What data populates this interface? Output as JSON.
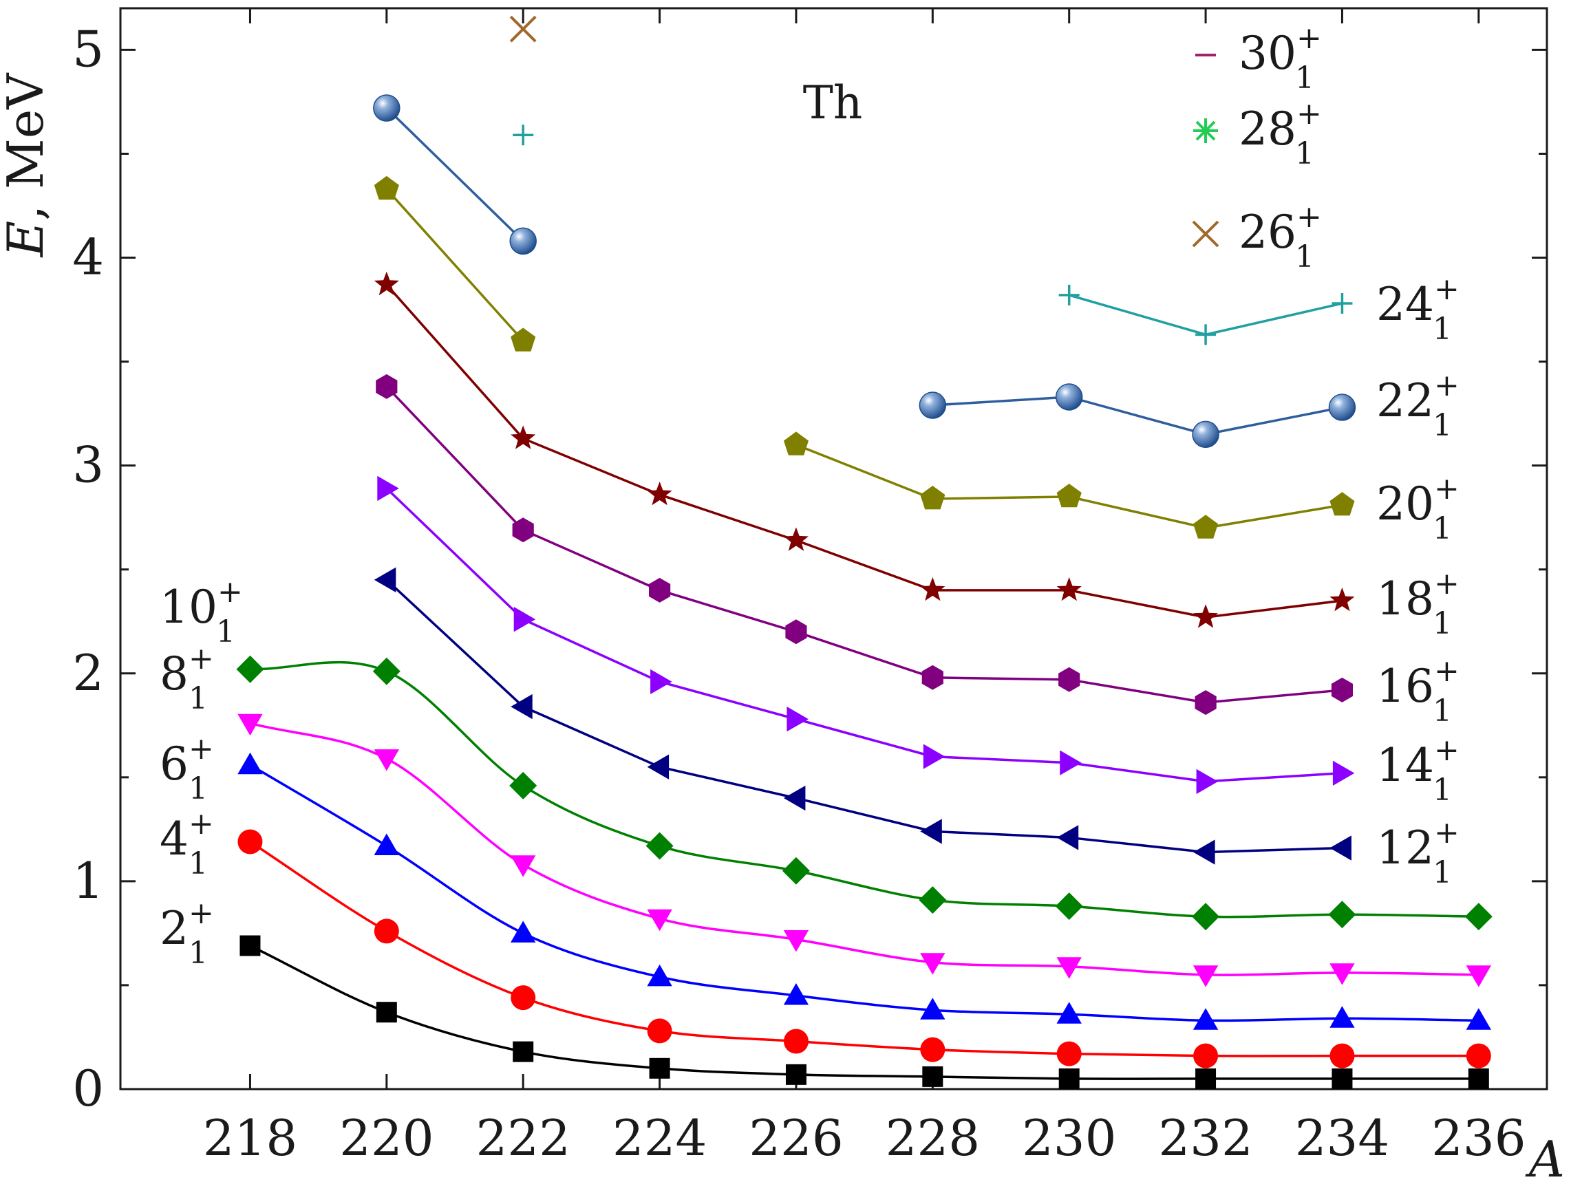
{
  "chart_data": {
    "type": "line",
    "annotation": "Th",
    "xlabel": "A",
    "ylabel": {
      "symbol": "E",
      "unit": ", MeV"
    },
    "xlim": [
      216.1,
      237.0
    ],
    "ylim": [
      0,
      5.2
    ],
    "xticks": [
      218,
      220,
      222,
      224,
      226,
      228,
      230,
      232,
      234,
      236
    ],
    "yticks_labeled": [
      0,
      1,
      2,
      3,
      4,
      5
    ],
    "yticks_minor": [
      0.5,
      1.5,
      2.5,
      3.5,
      4.5
    ],
    "grid": false,
    "legend_placement": "top-right",
    "series": [
      {
        "name": "2",
        "label_text": "2",
        "sup": "+",
        "sub": "1",
        "color": "#000000",
        "marker": "square",
        "smooth": true,
        "x": [
          218,
          220,
          222,
          224,
          226,
          228,
          230,
          232,
          234,
          236
        ],
        "y": [
          0.69,
          0.37,
          0.18,
          0.1,
          0.07,
          0.06,
          0.05,
          0.05,
          0.05,
          0.05
        ]
      },
      {
        "name": "4",
        "label_text": "4",
        "sup": "+",
        "sub": "1",
        "color": "#ff0000",
        "marker": "circle",
        "smooth": true,
        "x": [
          218,
          220,
          222,
          224,
          226,
          228,
          230,
          232,
          234,
          236
        ],
        "y": [
          1.19,
          0.76,
          0.44,
          0.28,
          0.23,
          0.19,
          0.17,
          0.16,
          0.16,
          0.16
        ]
      },
      {
        "name": "6",
        "label_text": "6",
        "sup": "+",
        "sub": "1",
        "color": "#0000ff",
        "marker": "triangle-up",
        "smooth": true,
        "x": [
          218,
          220,
          222,
          224,
          226,
          228,
          230,
          232,
          234,
          236
        ],
        "y": [
          1.56,
          1.17,
          0.75,
          0.54,
          0.45,
          0.38,
          0.36,
          0.33,
          0.34,
          0.33
        ]
      },
      {
        "name": "8",
        "label_text": "8",
        "sup": "+",
        "sub": "1",
        "color": "#ff00ff",
        "marker": "triangle-down",
        "smooth": true,
        "x": [
          218,
          220,
          222,
          224,
          226,
          228,
          230,
          232,
          234,
          236
        ],
        "y": [
          1.76,
          1.59,
          1.08,
          0.82,
          0.72,
          0.61,
          0.59,
          0.55,
          0.56,
          0.55
        ]
      },
      {
        "name": "10",
        "label_text": "10",
        "sup": "+",
        "sub": "1",
        "color": "#008000",
        "marker": "diamond",
        "smooth": true,
        "x": [
          218,
          220,
          222,
          224,
          226,
          228,
          230,
          232,
          234,
          236
        ],
        "y": [
          2.02,
          2.01,
          1.46,
          1.17,
          1.05,
          0.91,
          0.88,
          0.83,
          0.84,
          0.83
        ]
      },
      {
        "name": "12",
        "label_text": "12",
        "sup": "+",
        "sub": "1",
        "color": "#000080",
        "marker": "triangle-left",
        "smooth": false,
        "x": [
          220,
          222,
          224,
          226,
          228,
          230,
          232,
          234
        ],
        "y": [
          2.45,
          1.84,
          1.55,
          1.4,
          1.24,
          1.21,
          1.14,
          1.16
        ]
      },
      {
        "name": "14",
        "label_text": "14",
        "sup": "+",
        "sub": "1",
        "color": "#8b00ff",
        "marker": "triangle-right",
        "smooth": false,
        "x": [
          220,
          222,
          224,
          226,
          228,
          230,
          232,
          234
        ],
        "y": [
          2.89,
          2.26,
          1.96,
          1.78,
          1.6,
          1.57,
          1.48,
          1.52
        ]
      },
      {
        "name": "16",
        "label_text": "16",
        "sup": "+",
        "sub": "1",
        "color": "#800080",
        "marker": "hexagon",
        "smooth": false,
        "x": [
          220,
          222,
          224,
          226,
          228,
          230,
          232,
          234
        ],
        "y": [
          3.38,
          2.69,
          2.4,
          2.2,
          1.98,
          1.97,
          1.86,
          1.92
        ]
      },
      {
        "name": "18",
        "label_text": "18",
        "sup": "+",
        "sub": "1",
        "color": "#800000",
        "marker": "star",
        "smooth": false,
        "x": [
          220,
          222,
          224,
          226,
          228,
          230,
          232,
          234
        ],
        "y": [
          3.87,
          3.13,
          2.86,
          2.64,
          2.4,
          2.4,
          2.27,
          2.35
        ]
      },
      {
        "name": "20",
        "label_text": "20",
        "sup": "+",
        "sub": "1",
        "color": "#808000",
        "marker": "pentagon",
        "smooth": false,
        "x": [
          220,
          222,
          226,
          228,
          230,
          232,
          234
        ],
        "y": [
          4.33,
          3.6,
          3.1,
          2.84,
          2.85,
          2.7,
          2.81
        ],
        "segments": [
          [
            0,
            1
          ],
          [
            2,
            6
          ]
        ]
      },
      {
        "name": "22",
        "label_text": "22",
        "sup": "+",
        "sub": "1",
        "color": "#2e5e9e",
        "marker": "sphere",
        "smooth": false,
        "x": [
          220,
          222,
          228,
          230,
          232,
          234
        ],
        "y": [
          4.72,
          4.08,
          3.29,
          3.33,
          3.15,
          3.28
        ],
        "segments": [
          [
            0,
            1
          ],
          [
            2,
            5
          ]
        ]
      },
      {
        "name": "24",
        "label_text": "24",
        "sup": "+",
        "sub": "1",
        "color": "#20a0a0",
        "marker": "plus",
        "smooth": false,
        "x": [
          222,
          230,
          232,
          234
        ],
        "y": [
          4.59,
          3.82,
          3.63,
          3.78
        ],
        "segments": [
          [
            1,
            3
          ]
        ]
      },
      {
        "name": "26",
        "label_text": "26",
        "sup": "+",
        "sub": "1",
        "color": "#a0682a",
        "marker": "x",
        "smooth": false,
        "x": [
          222
        ],
        "y": [
          5.1
        ],
        "segments": []
      },
      {
        "name": "28",
        "label_text": "28",
        "sup": "+",
        "sub": "1",
        "color": "#22cc55",
        "marker": "asterisk",
        "smooth": false,
        "x": [],
        "y": [],
        "segments": []
      },
      {
        "name": "30",
        "label_text": "30",
        "sup": "+",
        "sub": "1",
        "color": "#a0206a",
        "marker": "hline",
        "smooth": false,
        "x": [],
        "y": [],
        "segments": []
      }
    ]
  }
}
